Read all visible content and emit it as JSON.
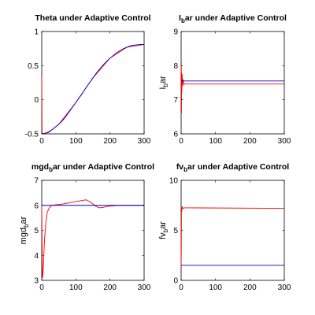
{
  "chart_data": [
    {
      "type": "line",
      "title": "Theta under Adaptive Control",
      "ylabel_main": "",
      "ylabel_sub": "",
      "ylabel_tail": "",
      "xlim": [
        0,
        300
      ],
      "ylim": [
        -0.5,
        1
      ],
      "xticks": [
        "0",
        "100",
        "200",
        "300"
      ],
      "yticks": [
        "-0.5",
        "0",
        "0.5",
        "1"
      ],
      "ytick_values": [
        -0.5,
        0,
        0.5,
        1
      ],
      "series": [
        {
          "color": "#ff0000",
          "x": [
            0,
            0.5,
            1,
            2,
            3,
            5,
            10,
            20,
            50,
            100,
            150,
            200,
            250,
            300
          ],
          "y": [
            0.35,
            -0.1,
            -0.5,
            -0.5,
            -0.5,
            -0.5,
            -0.49,
            -0.48,
            -0.36,
            -0.04,
            0.32,
            0.61,
            0.77,
            0.81
          ]
        },
        {
          "color": "#0000cc",
          "x": [
            0,
            10,
            20,
            30,
            40,
            50,
            60,
            70,
            80,
            90,
            100,
            110,
            120,
            130,
            140,
            150,
            160,
            170,
            180,
            190,
            200,
            210,
            220,
            230,
            240,
            250,
            260,
            270,
            280,
            290,
            300
          ],
          "y": [
            -0.5,
            -0.49,
            -0.47,
            -0.44,
            -0.4,
            -0.36,
            -0.31,
            -0.25,
            -0.18,
            -0.11,
            -0.04,
            0.03,
            0.1,
            0.18,
            0.25,
            0.32,
            0.39,
            0.45,
            0.51,
            0.56,
            0.61,
            0.65,
            0.69,
            0.72,
            0.75,
            0.77,
            0.79,
            0.8,
            0.805,
            0.81,
            0.81
          ]
        }
      ]
    },
    {
      "type": "line",
      "title": "I",
      "title_sub": "b",
      "title_tail": "ar under Adaptive Control",
      "ylabel_main": "I",
      "ylabel_sub": "b",
      "ylabel_tail": "ar",
      "xlim": [
        0,
        300
      ],
      "ylim": [
        6,
        9
      ],
      "xticks": [
        "0",
        "100",
        "200",
        "300"
      ],
      "yticks": [
        "6",
        "7",
        "8",
        "9"
      ],
      "ytick_values": [
        6,
        7,
        8,
        9
      ],
      "series": [
        {
          "color": "#ff0000",
          "x": [
            0,
            0.5,
            1,
            1.5,
            2,
            3,
            4,
            6,
            8,
            10,
            20,
            300
          ],
          "y": [
            7.5,
            8.1,
            6.6,
            7.8,
            7.2,
            7.75,
            7.4,
            7.6,
            7.45,
            7.46,
            7.46,
            7.46
          ]
        },
        {
          "color": "#0000cc",
          "x": [
            0,
            300
          ],
          "y": [
            7.55,
            7.55
          ]
        }
      ]
    },
    {
      "type": "line",
      "title": "mgd",
      "title_sub": "b",
      "title_tail": "ar under Adaptive Control",
      "ylabel_main": "mgd",
      "ylabel_sub": "b",
      "ylabel_tail": "ar",
      "xlim": [
        0,
        300
      ],
      "ylim": [
        3,
        7
      ],
      "xticks": [
        "0",
        "100",
        "200",
        "300"
      ],
      "yticks": [
        "3",
        "4",
        "5",
        "6",
        "7"
      ],
      "ytick_values": [
        3,
        4,
        5,
        6,
        7
      ],
      "series": [
        {
          "color": "#ff0000",
          "x": [
            0,
            1,
            2,
            3,
            5,
            8,
            12,
            16,
            20,
            25,
            30,
            40,
            60,
            80,
            100,
            120,
            130,
            140,
            150,
            160,
            170,
            180,
            190,
            200,
            220,
            250,
            300
          ],
          "y": [
            6.0,
            4.5,
            3.2,
            3.1,
            3.6,
            4.6,
            5.3,
            5.7,
            5.85,
            5.95,
            6.0,
            6.02,
            6.05,
            6.1,
            6.15,
            6.2,
            6.22,
            6.15,
            6.05,
            5.95,
            5.9,
            5.92,
            5.95,
            5.97,
            5.99,
            6.0,
            6.0
          ]
        },
        {
          "color": "#0000cc",
          "x": [
            0,
            300
          ],
          "y": [
            6.0,
            6.0
          ]
        }
      ]
    },
    {
      "type": "line",
      "title": "fv",
      "title_sub": "b",
      "title_tail": "ar under Adaptive Control",
      "ylabel_main": "fv",
      "ylabel_sub": "b",
      "ylabel_tail": "ar",
      "xlim": [
        0,
        300
      ],
      "ylim": [
        0,
        10
      ],
      "xticks": [
        "0",
        "100",
        "200",
        "300"
      ],
      "yticks": [
        "0",
        "5",
        "10"
      ],
      "ytick_values": [
        0,
        5,
        10
      ],
      "series": [
        {
          "color": "#ff0000",
          "x": [
            0,
            0.5,
            1,
            2,
            3,
            5,
            10,
            30,
            300
          ],
          "y": [
            1.5,
            3.0,
            7.2,
            6.9,
            7.4,
            7.2,
            7.25,
            7.25,
            7.2
          ]
        },
        {
          "color": "#0000cc",
          "x": [
            0,
            300
          ],
          "y": [
            1.5,
            1.5
          ]
        }
      ]
    }
  ]
}
